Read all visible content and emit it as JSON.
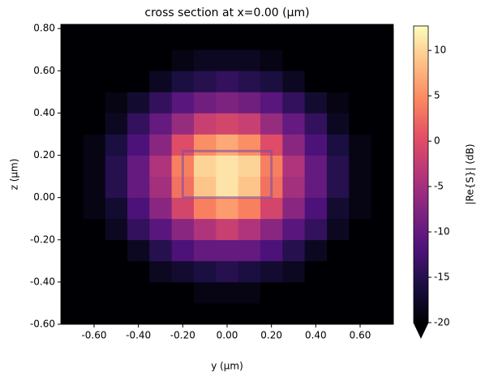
{
  "chart_data": {
    "type": "heatmap",
    "title": "cross section at x=0.00 (µm)",
    "x_label": "y (µm)",
    "y_label": "z (µm)",
    "colorbar_label": "|Re{S}| (dB)",
    "colormap": "magma",
    "x": [
      -0.7,
      -0.6,
      -0.5,
      -0.4,
      -0.3,
      -0.2,
      -0.1,
      0.0,
      0.1,
      0.2,
      0.3,
      0.4,
      0.5,
      0.6,
      0.7
    ],
    "y": [
      -0.55,
      -0.45,
      -0.35,
      -0.25,
      -0.15,
      -0.05,
      0.05,
      0.15,
      0.25,
      0.35,
      0.45,
      0.55,
      0.65,
      0.75
    ],
    "z": [
      [
        -30,
        -30,
        -30,
        -28,
        -26,
        -24,
        -23,
        -23,
        -23,
        -24,
        -26,
        -28,
        -30,
        -30,
        -30
      ],
      [
        -30,
        -30,
        -27,
        -24,
        -21,
        -20,
        -19,
        -19,
        -19,
        -20,
        -21,
        -24,
        -27,
        -30,
        -30
      ],
      [
        -30,
        -27,
        -23,
        -20,
        -18,
        -17,
        -16,
        -15,
        -16,
        -17,
        -18,
        -20,
        -23,
        -27,
        -30
      ],
      [
        -28,
        -24,
        -20,
        -18,
        -15,
        -12,
        -10,
        -10,
        -10,
        -12,
        -15,
        -18,
        -20,
        -24,
        -28
      ],
      [
        -25,
        -21,
        -18,
        -14,
        -11,
        -7,
        -4,
        -2,
        -4,
        -7,
        -11,
        -14,
        -18,
        -21,
        -25
      ],
      [
        -24,
        -19,
        -17,
        -12,
        -7,
        -1,
        4,
        6,
        4,
        -1,
        -7,
        -12,
        -17,
        -19,
        -24
      ],
      [
        -23,
        -19,
        -15,
        -10,
        -5,
        3,
        9,
        11,
        9,
        3,
        -5,
        -10,
        -15,
        -19,
        -23
      ],
      [
        -22,
        -19,
        -15,
        -10,
        -4,
        4,
        10,
        11,
        10,
        4,
        -4,
        -10,
        -15,
        -19,
        -22
      ],
      [
        -23,
        -19,
        -16,
        -12,
        -7,
        0,
        5,
        7,
        5,
        0,
        -7,
        -12,
        -16,
        -19,
        -23
      ],
      [
        -25,
        -20,
        -18,
        -14,
        -10,
        -6,
        -2,
        -1,
        -2,
        -6,
        -10,
        -14,
        -18,
        -20,
        -25
      ],
      [
        -27,
        -23,
        -19,
        -17,
        -14,
        -11,
        -9,
        -8,
        -9,
        -11,
        -14,
        -17,
        -19,
        -23,
        -27
      ],
      [
        -30,
        -27,
        -23,
        -20,
        -18,
        -16,
        -15,
        -14,
        -15,
        -16,
        -18,
        -20,
        -23,
        -27,
        -30
      ],
      [
        -30,
        -30,
        -26,
        -23,
        -20,
        -19,
        -18,
        -18,
        -18,
        -19,
        -20,
        -23,
        -26,
        -30,
        -30
      ],
      [
        -30,
        -30,
        -30,
        -27,
        -25,
        -23,
        -22,
        -22,
        -22,
        -23,
        -25,
        -27,
        -30,
        -30,
        -30
      ]
    ],
    "xlim": [
      -0.75,
      0.75
    ],
    "ylim": [
      -0.6,
      0.82
    ],
    "clim": [
      -20,
      12.7
    ],
    "xticks": [
      {
        "value": -0.6,
        "label": "-0.60"
      },
      {
        "value": -0.4,
        "label": "-0.40"
      },
      {
        "value": -0.2,
        "label": "-0.20"
      },
      {
        "value": 0,
        "label": "0.00"
      },
      {
        "value": 0.2,
        "label": "0.20"
      },
      {
        "value": 0.4,
        "label": "0.40"
      },
      {
        "value": 0.6,
        "label": "0.60"
      }
    ],
    "yticks": [
      {
        "value": -0.6,
        "label": "-0.60"
      },
      {
        "value": -0.4,
        "label": "-0.40"
      },
      {
        "value": -0.2,
        "label": "-0.20"
      },
      {
        "value": 0,
        "label": "0.00"
      },
      {
        "value": 0.2,
        "label": "0.20"
      },
      {
        "value": 0.4,
        "label": "0.40"
      },
      {
        "value": 0.6,
        "label": "0.60"
      },
      {
        "value": 0.8,
        "label": "0.80"
      }
    ],
    "cticks": [
      -20,
      -15,
      -10,
      -5,
      0,
      5,
      10
    ]
  }
}
